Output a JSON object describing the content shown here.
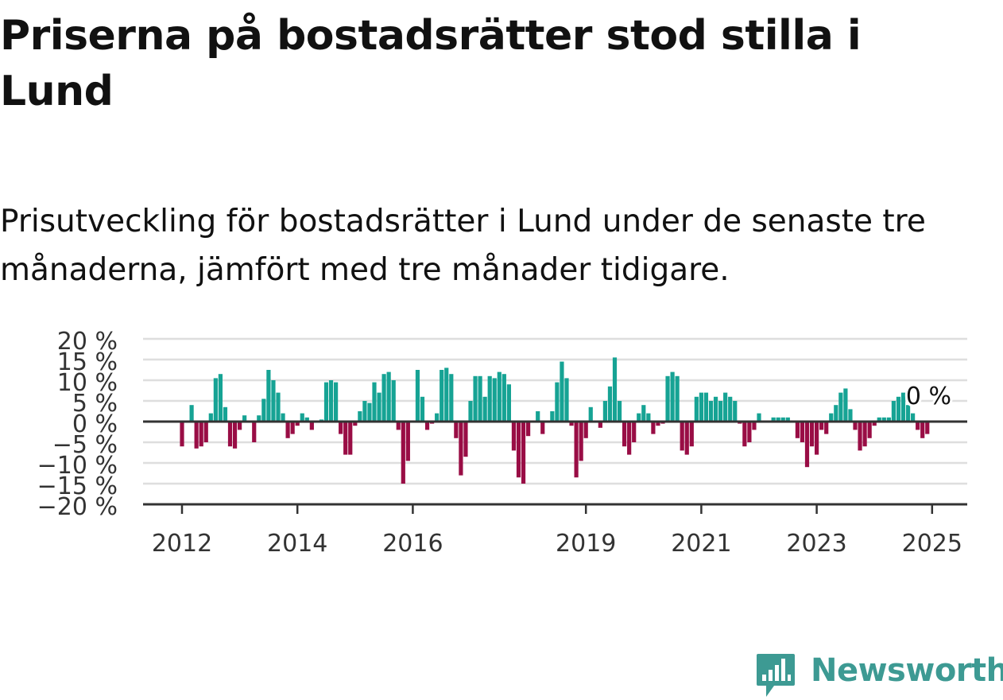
{
  "header": {
    "title": "Priserna på bostadsrätter stod stilla i Lund",
    "subtitle": "Prisutveckling för bostadsrätter i Lund under de senaste tre månaderna, jämfört med tre månader tidigare."
  },
  "brand": {
    "name": "Newsworthy",
    "icon": "newsworthy-chart-bubble-icon",
    "color": "#3d9a93"
  },
  "colors": {
    "positive": "#16a394",
    "negative": "#990d45",
    "grid": "#dedede",
    "axis": "#333333"
  },
  "chart_data": {
    "type": "bar",
    "title": "Priserna på bostadsrätter stod stilla i Lund",
    "subtitle": "Prisutveckling för bostadsrätter i Lund under de senaste tre månaderna, jämfört med tre månader tidigare.",
    "xlabel": "",
    "ylabel": "",
    "ylim": [
      -20,
      20
    ],
    "yticks": [
      20,
      15,
      10,
      5,
      0,
      -5,
      -10,
      -15,
      -20
    ],
    "ytick_labels": [
      "20 %",
      "15 %",
      "10 %",
      "5 %",
      "0 %",
      "−5 %",
      "−10 %",
      "−15 %",
      "−20 %"
    ],
    "xticks": [
      "2012",
      "2014",
      "2016",
      "2019",
      "2021",
      "2023",
      "2025"
    ],
    "xtick_index": [
      0,
      24,
      48,
      84,
      108,
      132,
      156
    ],
    "grid": true,
    "start_month": "2012-01",
    "last_value_label": "0 %",
    "values": [
      -6,
      0,
      4,
      -6.5,
      -6,
      -5,
      2,
      10.5,
      11.5,
      3.5,
      -6,
      -6.5,
      -2,
      1.5,
      0,
      -5,
      1.5,
      5.5,
      12.5,
      10,
      7,
      2,
      -4,
      -3,
      -1,
      2,
      1,
      -2,
      0,
      0.5,
      9.5,
      10,
      9.5,
      -3,
      -8,
      -8,
      -1,
      2.5,
      5,
      4.5,
      9.5,
      7,
      11.5,
      12,
      10,
      -2,
      -15,
      -9.5,
      0,
      12.5,
      6,
      -2,
      -0.5,
      2,
      12.5,
      13,
      11.5,
      -4,
      -13,
      -8.5,
      5,
      11,
      11,
      6,
      11,
      10.5,
      12,
      11.5,
      9,
      -7,
      -13.5,
      -15,
      -3.5,
      0,
      2.5,
      -3,
      0,
      2.5,
      9.5,
      14.5,
      10.5,
      -1,
      -13.5,
      -9.5,
      -4,
      3.5,
      0,
      -1.5,
      5,
      8.5,
      15.5,
      5,
      -6,
      -8,
      -5,
      2,
      4,
      2,
      -3,
      -1,
      -0.5,
      11,
      12,
      11,
      -7,
      -8,
      -6,
      6,
      7,
      7,
      5,
      6,
      5,
      7,
      6,
      5,
      -0.5,
      -6,
      -5,
      -2,
      2,
      0,
      0,
      1,
      1,
      1,
      1,
      0,
      -4,
      -5,
      -11,
      -6,
      -8,
      -2,
      -3,
      2,
      4,
      7,
      8,
      3,
      -2,
      -7,
      -6,
      -4,
      -1,
      1,
      1,
      1,
      5,
      6,
      7,
      4,
      2,
      -2,
      -4,
      -3,
      0
    ]
  }
}
